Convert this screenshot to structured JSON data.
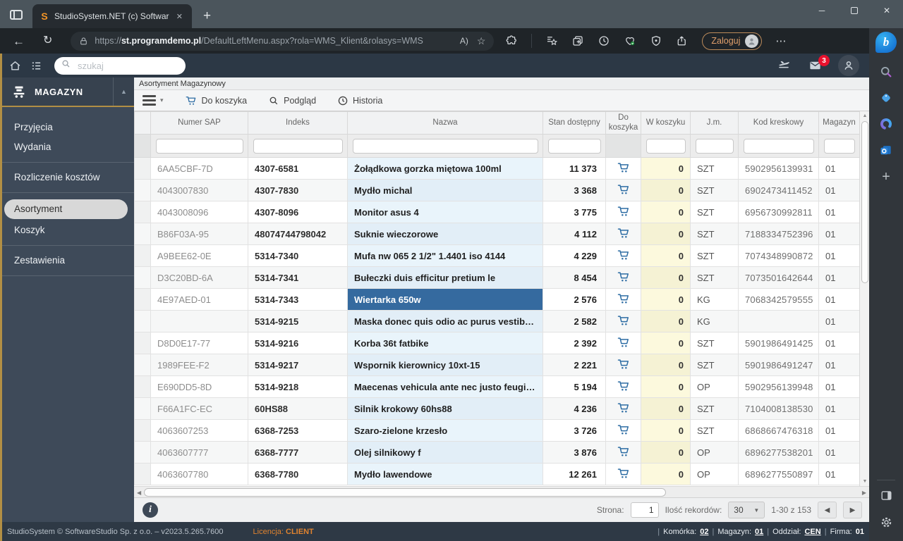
{
  "browser": {
    "tab_title": "StudioSystem.NET (c) SoftwareSt",
    "url": {
      "scheme": "https://",
      "host": "st.programdemo.pl",
      "path": "/DefaultLeftMenu.aspx?rola=WMS_Klient&rolasys=WMS"
    },
    "login_label": "Zaloguj"
  },
  "app_header": {
    "search_placeholder": "szukaj",
    "mail_badge": "3"
  },
  "sidebar": {
    "section_label": "MAGAZYN",
    "selected": "Asortyment",
    "groups": [
      [
        "Przyjęcia",
        "Wydania"
      ],
      [
        "Rozliczenie kosztów"
      ],
      [
        "Asortyment",
        "Koszyk"
      ],
      [
        "Zestawienia"
      ]
    ]
  },
  "content": {
    "title": "Asortyment Magazynowy",
    "toolbar": {
      "do_koszyka": "Do koszyka",
      "podglad": "Podgląd",
      "historia": "Historia"
    },
    "grid": {
      "columns": [
        "Numer SAP",
        "Indeks",
        "Nazwa",
        "Stan dostępny",
        "Do koszyka",
        "W koszyku",
        "J.m.",
        "Kod kreskowy",
        "Magazyn"
      ],
      "rows": [
        {
          "sap": "6AA5CBF-7D",
          "idx": "4307-6581",
          "name": "Żołądkowa gorzka miętowa 100ml",
          "stock": "11 373",
          "qty": "0",
          "unit": "SZT",
          "ean": "5902956139931",
          "wh": "01"
        },
        {
          "sap": "4043007830",
          "idx": "4307-7830",
          "name": "Mydło michal",
          "stock": "3 368",
          "qty": "0",
          "unit": "SZT",
          "ean": "6902473411452",
          "wh": "01"
        },
        {
          "sap": "4043008096",
          "idx": "4307-8096",
          "name": "Monitor asus 4",
          "stock": "3 775",
          "qty": "0",
          "unit": "SZT",
          "ean": "6956730992811",
          "wh": "01"
        },
        {
          "sap": "B86F03A-95",
          "idx": "48074744798042",
          "name": "Suknie wieczorowe",
          "stock": "4 112",
          "qty": "0",
          "unit": "SZT",
          "ean": "7188334752396",
          "wh": "01"
        },
        {
          "sap": "A9BEE62-0E",
          "idx": "5314-7340",
          "name": "Mufa nw 065 2 1/2\" 1.4401 iso 4144",
          "stock": "4 229",
          "qty": "0",
          "unit": "SZT",
          "ean": "7074348990872",
          "wh": "01"
        },
        {
          "sap": "D3C20BD-6A",
          "idx": "5314-7341",
          "name": "Bułeczki duis efficitur pretium le",
          "stock": "8 454",
          "qty": "0",
          "unit": "SZT",
          "ean": "7073501642644",
          "wh": "01"
        },
        {
          "sap": "4E97AED-01",
          "idx": "5314-7343",
          "name": "Wiertarka 650w",
          "stock": "2 576",
          "qty": "0",
          "unit": "KG",
          "ean": "7068342579555",
          "wh": "01",
          "selected": true
        },
        {
          "sap": "",
          "idx": "5314-9215",
          "name": "Maska donec quis odio ac purus vestibulu…",
          "stock": "2 582",
          "qty": "0",
          "unit": "KG",
          "ean": "",
          "wh": "01"
        },
        {
          "sap": "D8D0E17-77",
          "idx": "5314-9216",
          "name": "Korba 36t fatbike",
          "stock": "2 392",
          "qty": "0",
          "unit": "SZT",
          "ean": "5901986491425",
          "wh": "01"
        },
        {
          "sap": "1989FEE-F2",
          "idx": "5314-9217",
          "name": "Wspornik kierownicy 10xt-15",
          "stock": "2 221",
          "qty": "0",
          "unit": "SZT",
          "ean": "5901986491247",
          "wh": "01"
        },
        {
          "sap": "E690DD5-8D",
          "idx": "5314-9218",
          "name": "Maecenas vehicula ante nec justo feugiat, …",
          "stock": "5 194",
          "qty": "0",
          "unit": "OP",
          "ean": "5902956139948",
          "wh": "01"
        },
        {
          "sap": "F66A1FC-EC",
          "idx": "60HS88",
          "name": "Silnik krokowy 60hs88",
          "stock": "4 236",
          "qty": "0",
          "unit": "SZT",
          "ean": "7104008138530",
          "wh": "01"
        },
        {
          "sap": "4063607253",
          "idx": "6368-7253",
          "name": "Szaro-zielone krzesło",
          "stock": "3 726",
          "qty": "0",
          "unit": "SZT",
          "ean": "6868667476318",
          "wh": "01"
        },
        {
          "sap": "4063607777",
          "idx": "6368-7777",
          "name": "Olej silnikowy f",
          "stock": "3 876",
          "qty": "0",
          "unit": "OP",
          "ean": "6896277538201",
          "wh": "01"
        },
        {
          "sap": "4063607780",
          "idx": "6368-7780",
          "name": "Mydło lawendowe",
          "stock": "12 261",
          "qty": "0",
          "unit": "OP",
          "ean": "6896277550897",
          "wh": "01"
        }
      ]
    },
    "pagination": {
      "page_label": "Strona:",
      "page_value": "1",
      "records_label": "Ilość rekordów:",
      "records_value": "30",
      "range": "1-30 z 153"
    }
  },
  "footer": {
    "copyright": "StudioSystem © SoftwareStudio Sp. z o.o. – v2023.5.265.7600",
    "license_label": "Licencja:",
    "license_value": "CLIENT",
    "cell_label": "Komórka:",
    "cell_value": "02",
    "warehouse_label": "Magazyn:",
    "warehouse_value": "01",
    "branch_label": "Oddział:",
    "branch_value": "CEN",
    "company_label": "Firma:",
    "company_value": "01"
  },
  "icons": {
    "favicon": "S",
    "close": "✕",
    "minimize": "─",
    "plus": "+",
    "back": "←",
    "refresh": "↻",
    "star": "☆",
    "read_aloud": "A)",
    "more": "⋯",
    "caret_up": "▲",
    "caret_down": "▼",
    "caret_small": "▾",
    "left": "◀",
    "right": "▶",
    "bing": "b",
    "info": "i"
  },
  "colors": {
    "accent_gold": "#b28f44",
    "selected_cell": "#356a9f",
    "cart_blue": "#2e6da4",
    "badge_red": "#e8112d",
    "license_orange": "#e0832f"
  }
}
